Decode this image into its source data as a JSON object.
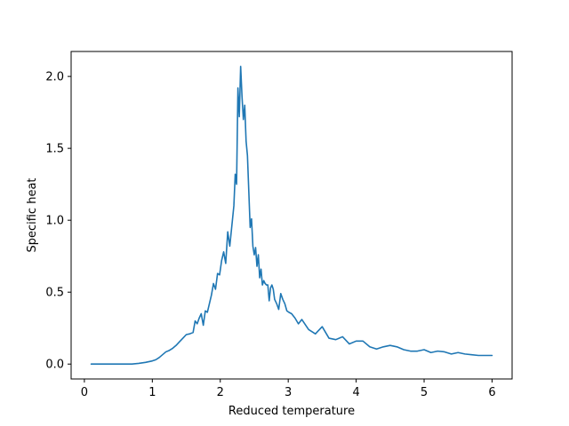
{
  "chart_data": {
    "type": "line",
    "title": "",
    "xlabel": "Reduced temperature",
    "ylabel": "Specific heat",
    "xlim": [
      -0.195,
      6.295
    ],
    "ylim": [
      -0.1035,
      2.1735
    ],
    "x_ticks": [
      0,
      1,
      2,
      3,
      4,
      5,
      6
    ],
    "y_ticks": [
      0.0,
      0.5,
      1.0,
      1.5,
      2.0
    ],
    "x_tick_labels": [
      "0",
      "1",
      "2",
      "3",
      "4",
      "5",
      "6"
    ],
    "y_tick_labels": [
      "0.0",
      "0.5",
      "1.0",
      "1.5",
      "2.0"
    ],
    "grid": false,
    "legend": "none",
    "series": [
      {
        "color": "#1f77b4",
        "x": [
          0.1,
          0.3,
          0.5,
          0.7,
          0.8,
          0.9,
          1.0,
          1.05,
          1.1,
          1.15,
          1.2,
          1.25,
          1.3,
          1.35,
          1.4,
          1.45,
          1.5,
          1.55,
          1.6,
          1.63,
          1.66,
          1.69,
          1.72,
          1.75,
          1.78,
          1.81,
          1.84,
          1.87,
          1.9,
          1.93,
          1.96,
          1.99,
          2.02,
          2.05,
          2.08,
          2.11,
          2.14,
          2.17,
          2.2,
          2.22,
          2.24,
          2.26,
          2.28,
          2.3,
          2.32,
          2.34,
          2.36,
          2.38,
          2.4,
          2.42,
          2.44,
          2.46,
          2.48,
          2.5,
          2.52,
          2.54,
          2.56,
          2.58,
          2.6,
          2.62,
          2.64,
          2.66,
          2.68,
          2.7,
          2.72,
          2.74,
          2.76,
          2.78,
          2.8,
          2.83,
          2.86,
          2.89,
          2.92,
          2.95,
          2.98,
          3.01,
          3.05,
          3.1,
          3.15,
          3.2,
          3.3,
          3.4,
          3.5,
          3.6,
          3.7,
          3.8,
          3.9,
          4.0,
          4.1,
          4.2,
          4.3,
          4.4,
          4.5,
          4.6,
          4.7,
          4.8,
          4.9,
          5.0,
          5.1,
          5.2,
          5.3,
          5.4,
          5.5,
          5.6,
          5.7,
          5.8,
          5.9,
          6.0
        ],
        "y": [
          0.0,
          0.0,
          0.0,
          0.0,
          0.005,
          0.012,
          0.022,
          0.03,
          0.045,
          0.065,
          0.085,
          0.095,
          0.11,
          0.13,
          0.155,
          0.18,
          0.205,
          0.21,
          0.22,
          0.3,
          0.28,
          0.32,
          0.35,
          0.27,
          0.37,
          0.36,
          0.42,
          0.48,
          0.56,
          0.52,
          0.63,
          0.62,
          0.72,
          0.78,
          0.7,
          0.92,
          0.82,
          0.96,
          1.1,
          1.32,
          1.25,
          1.92,
          1.72,
          2.07,
          1.86,
          1.7,
          1.8,
          1.55,
          1.45,
          1.2,
          0.95,
          1.01,
          0.82,
          0.76,
          0.81,
          0.68,
          0.76,
          0.6,
          0.66,
          0.55,
          0.58,
          0.56,
          0.55,
          0.55,
          0.44,
          0.53,
          0.55,
          0.52,
          0.45,
          0.42,
          0.38,
          0.49,
          0.45,
          0.42,
          0.37,
          0.36,
          0.35,
          0.32,
          0.28,
          0.31,
          0.24,
          0.21,
          0.26,
          0.18,
          0.17,
          0.19,
          0.14,
          0.16,
          0.16,
          0.12,
          0.105,
          0.12,
          0.13,
          0.12,
          0.1,
          0.09,
          0.09,
          0.1,
          0.08,
          0.09,
          0.085,
          0.07,
          0.08,
          0.07,
          0.065,
          0.06,
          0.06,
          0.06
        ]
      }
    ]
  }
}
